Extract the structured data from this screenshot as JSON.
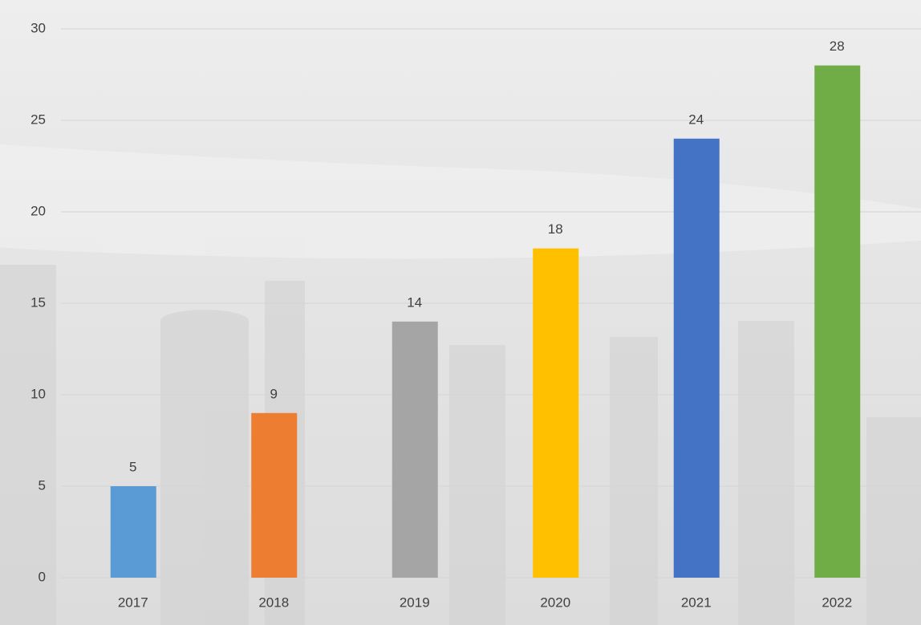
{
  "chart_data": {
    "type": "bar",
    "categories": [
      "2017",
      "2018",
      "2019",
      "2020",
      "2021",
      "2022"
    ],
    "values": [
      5,
      9,
      14,
      18,
      24,
      28
    ],
    "colors": [
      "#5b9bd5",
      "#ed7d31",
      "#a5a5a5",
      "#ffc000",
      "#4472c4",
      "#70ad47"
    ],
    "ylim": [
      0,
      30
    ],
    "yticks": [
      0,
      5,
      10,
      15,
      20,
      25,
      30
    ],
    "grid": true,
    "data_labels": true
  }
}
